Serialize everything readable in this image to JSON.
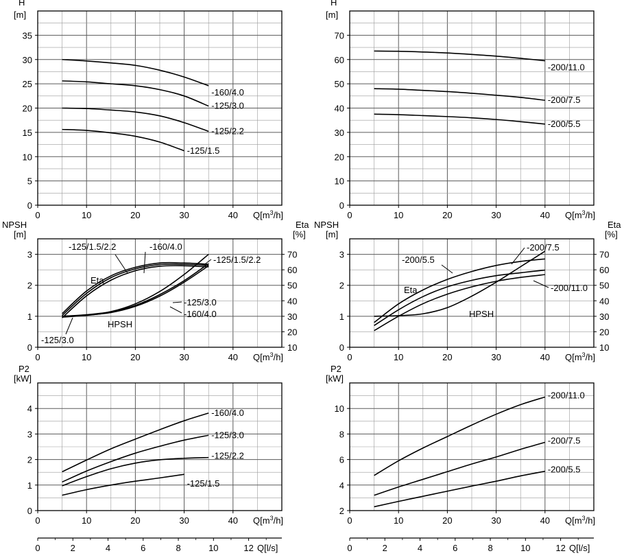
{
  "colors": {
    "curve": "#000000",
    "grid": "#808080",
    "background": "#ffffff"
  },
  "chart_data": [
    {
      "id": "tl",
      "type": "line",
      "title": "",
      "xlabel": "Q[m³/h]",
      "ylabel": "H",
      "yunit": "[m]",
      "xlim": [
        0,
        50
      ],
      "ylim": [
        0,
        40
      ],
      "xticks": [
        0,
        10,
        20,
        30,
        40
      ],
      "yticks": [
        0,
        5,
        10,
        15,
        20,
        25,
        30,
        35
      ],
      "grid": true,
      "series": [
        {
          "name": "-160/4.0",
          "x": [
            5,
            10,
            15,
            20,
            25,
            30,
            35
          ],
          "y": [
            30.0,
            29.7,
            29.3,
            28.8,
            27.8,
            26.4,
            24.6
          ]
        },
        {
          "name": "-125/3.0",
          "x": [
            5,
            10,
            15,
            20,
            25,
            30,
            35
          ],
          "y": [
            25.6,
            25.4,
            25.0,
            24.6,
            23.8,
            22.5,
            20.4
          ]
        },
        {
          "name": "-125/2.2",
          "x": [
            5,
            10,
            15,
            20,
            25,
            30,
            35
          ],
          "y": [
            20.0,
            19.9,
            19.6,
            19.2,
            18.4,
            17.0,
            15.2
          ]
        },
        {
          "name": "-125/1.5",
          "x": [
            5,
            10,
            15,
            20,
            25,
            30
          ],
          "y": [
            15.6,
            15.4,
            14.9,
            14.2,
            13.0,
            11.2
          ]
        }
      ]
    },
    {
      "id": "tr",
      "type": "line",
      "title": "",
      "xlabel": "Q[m³/h]",
      "ylabel": "H",
      "yunit": "[m]",
      "xlim": [
        0,
        50
      ],
      "ylim": [
        0,
        80
      ],
      "xticks": [
        0,
        10,
        20,
        30,
        40
      ],
      "yticks": [
        0,
        10,
        20,
        30,
        40,
        50,
        60,
        70
      ],
      "grid": true,
      "series": [
        {
          "name": "-200/11.0",
          "x": [
            5,
            10,
            15,
            20,
            25,
            30,
            35,
            40
          ],
          "y": [
            63.5,
            63.4,
            63.1,
            62.7,
            62.1,
            61.4,
            60.5,
            59.5
          ]
        },
        {
          "name": "-200/7.5",
          "x": [
            5,
            10,
            15,
            20,
            25,
            30,
            35,
            40
          ],
          "y": [
            48.0,
            47.8,
            47.3,
            46.8,
            46.1,
            45.3,
            44.4,
            43.2
          ]
        },
        {
          "name": "-200/5.5",
          "x": [
            5,
            10,
            15,
            20,
            25,
            30,
            35,
            40
          ],
          "y": [
            37.5,
            37.3,
            36.9,
            36.5,
            36.0,
            35.3,
            34.4,
            33.4
          ]
        }
      ]
    },
    {
      "id": "ml",
      "type": "line",
      "title": "",
      "xlabel": "Q[m³/h]",
      "ylabel": "NPSH",
      "yunit": "[m]",
      "y2label": "Eta",
      "y2unit": "[%]",
      "xlim": [
        0,
        50
      ],
      "ylim": [
        0,
        3.5
      ],
      "y2lim": [
        10,
        80
      ],
      "xticks": [
        0,
        10,
        20,
        30,
        40
      ],
      "yticks": [
        0,
        1,
        2,
        3
      ],
      "y2ticks": [
        10,
        20,
        30,
        40,
        50,
        60,
        70
      ],
      "grid": true,
      "curve_labels": [
        "Eta",
        "HPSH"
      ],
      "series": [
        {
          "name": "NPSH -125/1.5/2.2",
          "axis": "left",
          "x": [
            5,
            10,
            15,
            20,
            25,
            30,
            35
          ],
          "y": [
            1.0,
            1.05,
            1.15,
            1.4,
            1.8,
            2.35,
            3.0
          ]
        },
        {
          "name": "NPSH -125/3.0",
          "axis": "left",
          "x": [
            5,
            10,
            15,
            20,
            25,
            30,
            35
          ],
          "y": [
            0.97,
            1.03,
            1.13,
            1.35,
            1.7,
            2.15,
            2.7
          ]
        },
        {
          "name": "NPSH -160/4.0",
          "axis": "left",
          "x": [
            5,
            10,
            15,
            20,
            25,
            30,
            35
          ],
          "y": [
            1.0,
            1.04,
            1.12,
            1.32,
            1.65,
            2.1,
            2.63
          ]
        },
        {
          "name": "Eta -125/1.5/2.2",
          "axis": "right",
          "x": [
            5,
            10,
            15,
            20,
            25,
            30,
            35
          ],
          "y": [
            30.5,
            44.8,
            54.9,
            60.6,
            63.4,
            63.5,
            62.9
          ]
        },
        {
          "name": "Eta -160/4.0",
          "axis": "right",
          "x": [
            5,
            10,
            15,
            20,
            25,
            30,
            35
          ],
          "y": [
            31.7,
            46.3,
            56.1,
            61.6,
            64.4,
            64.4,
            63.6
          ]
        },
        {
          "name": "Eta -125/3.0",
          "axis": "right",
          "x": [
            5,
            10,
            15,
            20,
            25,
            30,
            35
          ],
          "y": [
            29.0,
            43.2,
            53.3,
            59.4,
            62.3,
            62.6,
            61.9
          ]
        }
      ],
      "labels": [
        "-125/1.5/2.2",
        "-160/4.0",
        "-125/1.5/2.2",
        "-125/3.0",
        "-160/4.0",
        "-125/3.0"
      ]
    },
    {
      "id": "mr",
      "type": "line",
      "title": "",
      "xlabel": "Q[m³/h]",
      "ylabel": "NPSH",
      "yunit": "[m]",
      "y2label": "Eta",
      "y2unit": "[%]",
      "xlim": [
        0,
        50
      ],
      "ylim": [
        0,
        3.5
      ],
      "y2lim": [
        10,
        80
      ],
      "xticks": [
        0,
        10,
        20,
        30,
        40
      ],
      "yticks": [
        0,
        1,
        2,
        3
      ],
      "y2ticks": [
        10,
        20,
        30,
        40,
        50,
        60,
        70
      ],
      "grid": true,
      "curve_labels": [
        "Eta",
        "HPSH"
      ],
      "series": [
        {
          "name": "Eta -200/5.5",
          "axis": "right",
          "x": [
            5,
            10,
            15,
            20,
            25,
            30,
            35,
            40
          ],
          "y": [
            26.0,
            38.0,
            47.0,
            53.8,
            58.9,
            62.8,
            65.4,
            67.0
          ]
        },
        {
          "name": "Eta -200/7.5",
          "axis": "right",
          "x": [
            5,
            10,
            15,
            20,
            25,
            30,
            35,
            40
          ],
          "y": [
            24.0,
            34.2,
            42.7,
            49.0,
            53.2,
            56.2,
            58.1,
            59.8
          ]
        },
        {
          "name": "Eta -200/11.0",
          "axis": "right",
          "x": [
            5,
            10,
            15,
            20,
            25,
            30,
            35,
            40
          ],
          "y": [
            20.7,
            30.0,
            38.1,
            44.3,
            49.0,
            52.6,
            55.1,
            56.9
          ]
        },
        {
          "name": "NPSH",
          "axis": "left",
          "x": [
            5,
            10,
            15,
            20,
            25,
            30,
            35,
            40
          ],
          "y": [
            1.0,
            1.02,
            1.08,
            1.28,
            1.65,
            2.1,
            2.6,
            3.1
          ]
        }
      ],
      "labels": [
        "-200/7.5",
        "-200/5.5",
        "-200/11.0"
      ]
    },
    {
      "id": "bl",
      "type": "line",
      "title": "",
      "xlabel": "Q[m³/h]",
      "x2label": "Q[l/s]",
      "ylabel": "P2",
      "yunit": "[kW]",
      "xlim": [
        0,
        50
      ],
      "ylim": [
        0,
        5
      ],
      "xticks": [
        0,
        10,
        20,
        30,
        40
      ],
      "yticks": [
        0,
        1,
        2,
        3,
        4
      ],
      "x2ticks": [
        0,
        2,
        4,
        6,
        8,
        10,
        12
      ],
      "grid": true,
      "series": [
        {
          "name": "-160/4.0",
          "x": [
            5,
            10,
            15,
            20,
            25,
            30,
            35
          ],
          "y": [
            1.52,
            1.98,
            2.42,
            2.8,
            3.17,
            3.52,
            3.82
          ]
        },
        {
          "name": "-125/3.0",
          "x": [
            5,
            10,
            15,
            20,
            25,
            30,
            35
          ],
          "y": [
            1.12,
            1.55,
            1.92,
            2.25,
            2.52,
            2.76,
            2.95
          ]
        },
        {
          "name": "-125/2.2",
          "x": [
            5,
            10,
            15,
            20,
            25,
            30,
            35
          ],
          "y": [
            0.97,
            1.33,
            1.64,
            1.86,
            1.99,
            2.05,
            2.08
          ]
        },
        {
          "name": "-125/1.5",
          "x": [
            5,
            10,
            15,
            20,
            25,
            30
          ],
          "y": [
            0.6,
            0.82,
            1.0,
            1.15,
            1.28,
            1.42
          ]
        }
      ]
    },
    {
      "id": "br",
      "type": "line",
      "title": "",
      "xlabel": "Q[m³/h]",
      "x2label": "Q[l/s]",
      "ylabel": "P2",
      "yunit": "[kW]",
      "xlim": [
        0,
        50
      ],
      "ylim": [
        2,
        12
      ],
      "xticks": [
        0,
        10,
        20,
        30,
        40
      ],
      "yticks": [
        2,
        4,
        6,
        8,
        10
      ],
      "x2ticks": [
        0,
        2,
        4,
        6,
        8,
        10,
        12
      ],
      "grid": true,
      "series": [
        {
          "name": "-200/11.0",
          "x": [
            5,
            10,
            15,
            20,
            25,
            30,
            35,
            40
          ],
          "y": [
            4.75,
            5.9,
            6.9,
            7.8,
            8.7,
            9.55,
            10.3,
            10.9
          ]
        },
        {
          "name": "-200/7.5",
          "x": [
            5,
            10,
            15,
            20,
            25,
            30,
            35,
            40
          ],
          "y": [
            3.2,
            3.85,
            4.45,
            5.05,
            5.65,
            6.2,
            6.8,
            7.35
          ]
        },
        {
          "name": "-200/5.5",
          "x": [
            5,
            10,
            15,
            20,
            25,
            30,
            35,
            40
          ],
          "y": [
            2.3,
            2.72,
            3.12,
            3.52,
            3.92,
            4.3,
            4.72,
            5.08
          ]
        }
      ]
    }
  ]
}
